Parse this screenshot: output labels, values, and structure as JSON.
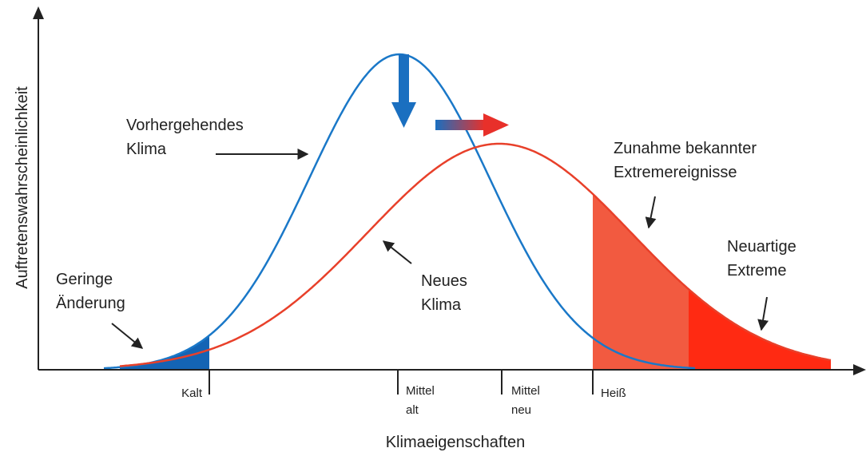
{
  "y_axis_label": "Auftretenswahrscheinlichkeit",
  "x_axis_label": "Klimaeigenschaften",
  "ticks": [
    [
      "Kalt"
    ],
    [
      "Mittel",
      "alt"
    ],
    [
      "Mittel",
      "neu"
    ],
    [
      "Heiß"
    ]
  ],
  "annotations": [
    [
      "Vorhergehendes",
      "Klima"
    ],
    [
      "Neues",
      "Klima"
    ],
    [
      "Geringe",
      "Änderung"
    ],
    [
      "Zunahme bekannter",
      "Extremereignisse"
    ],
    [
      "Neuartige",
      "Extreme"
    ]
  ]
}
